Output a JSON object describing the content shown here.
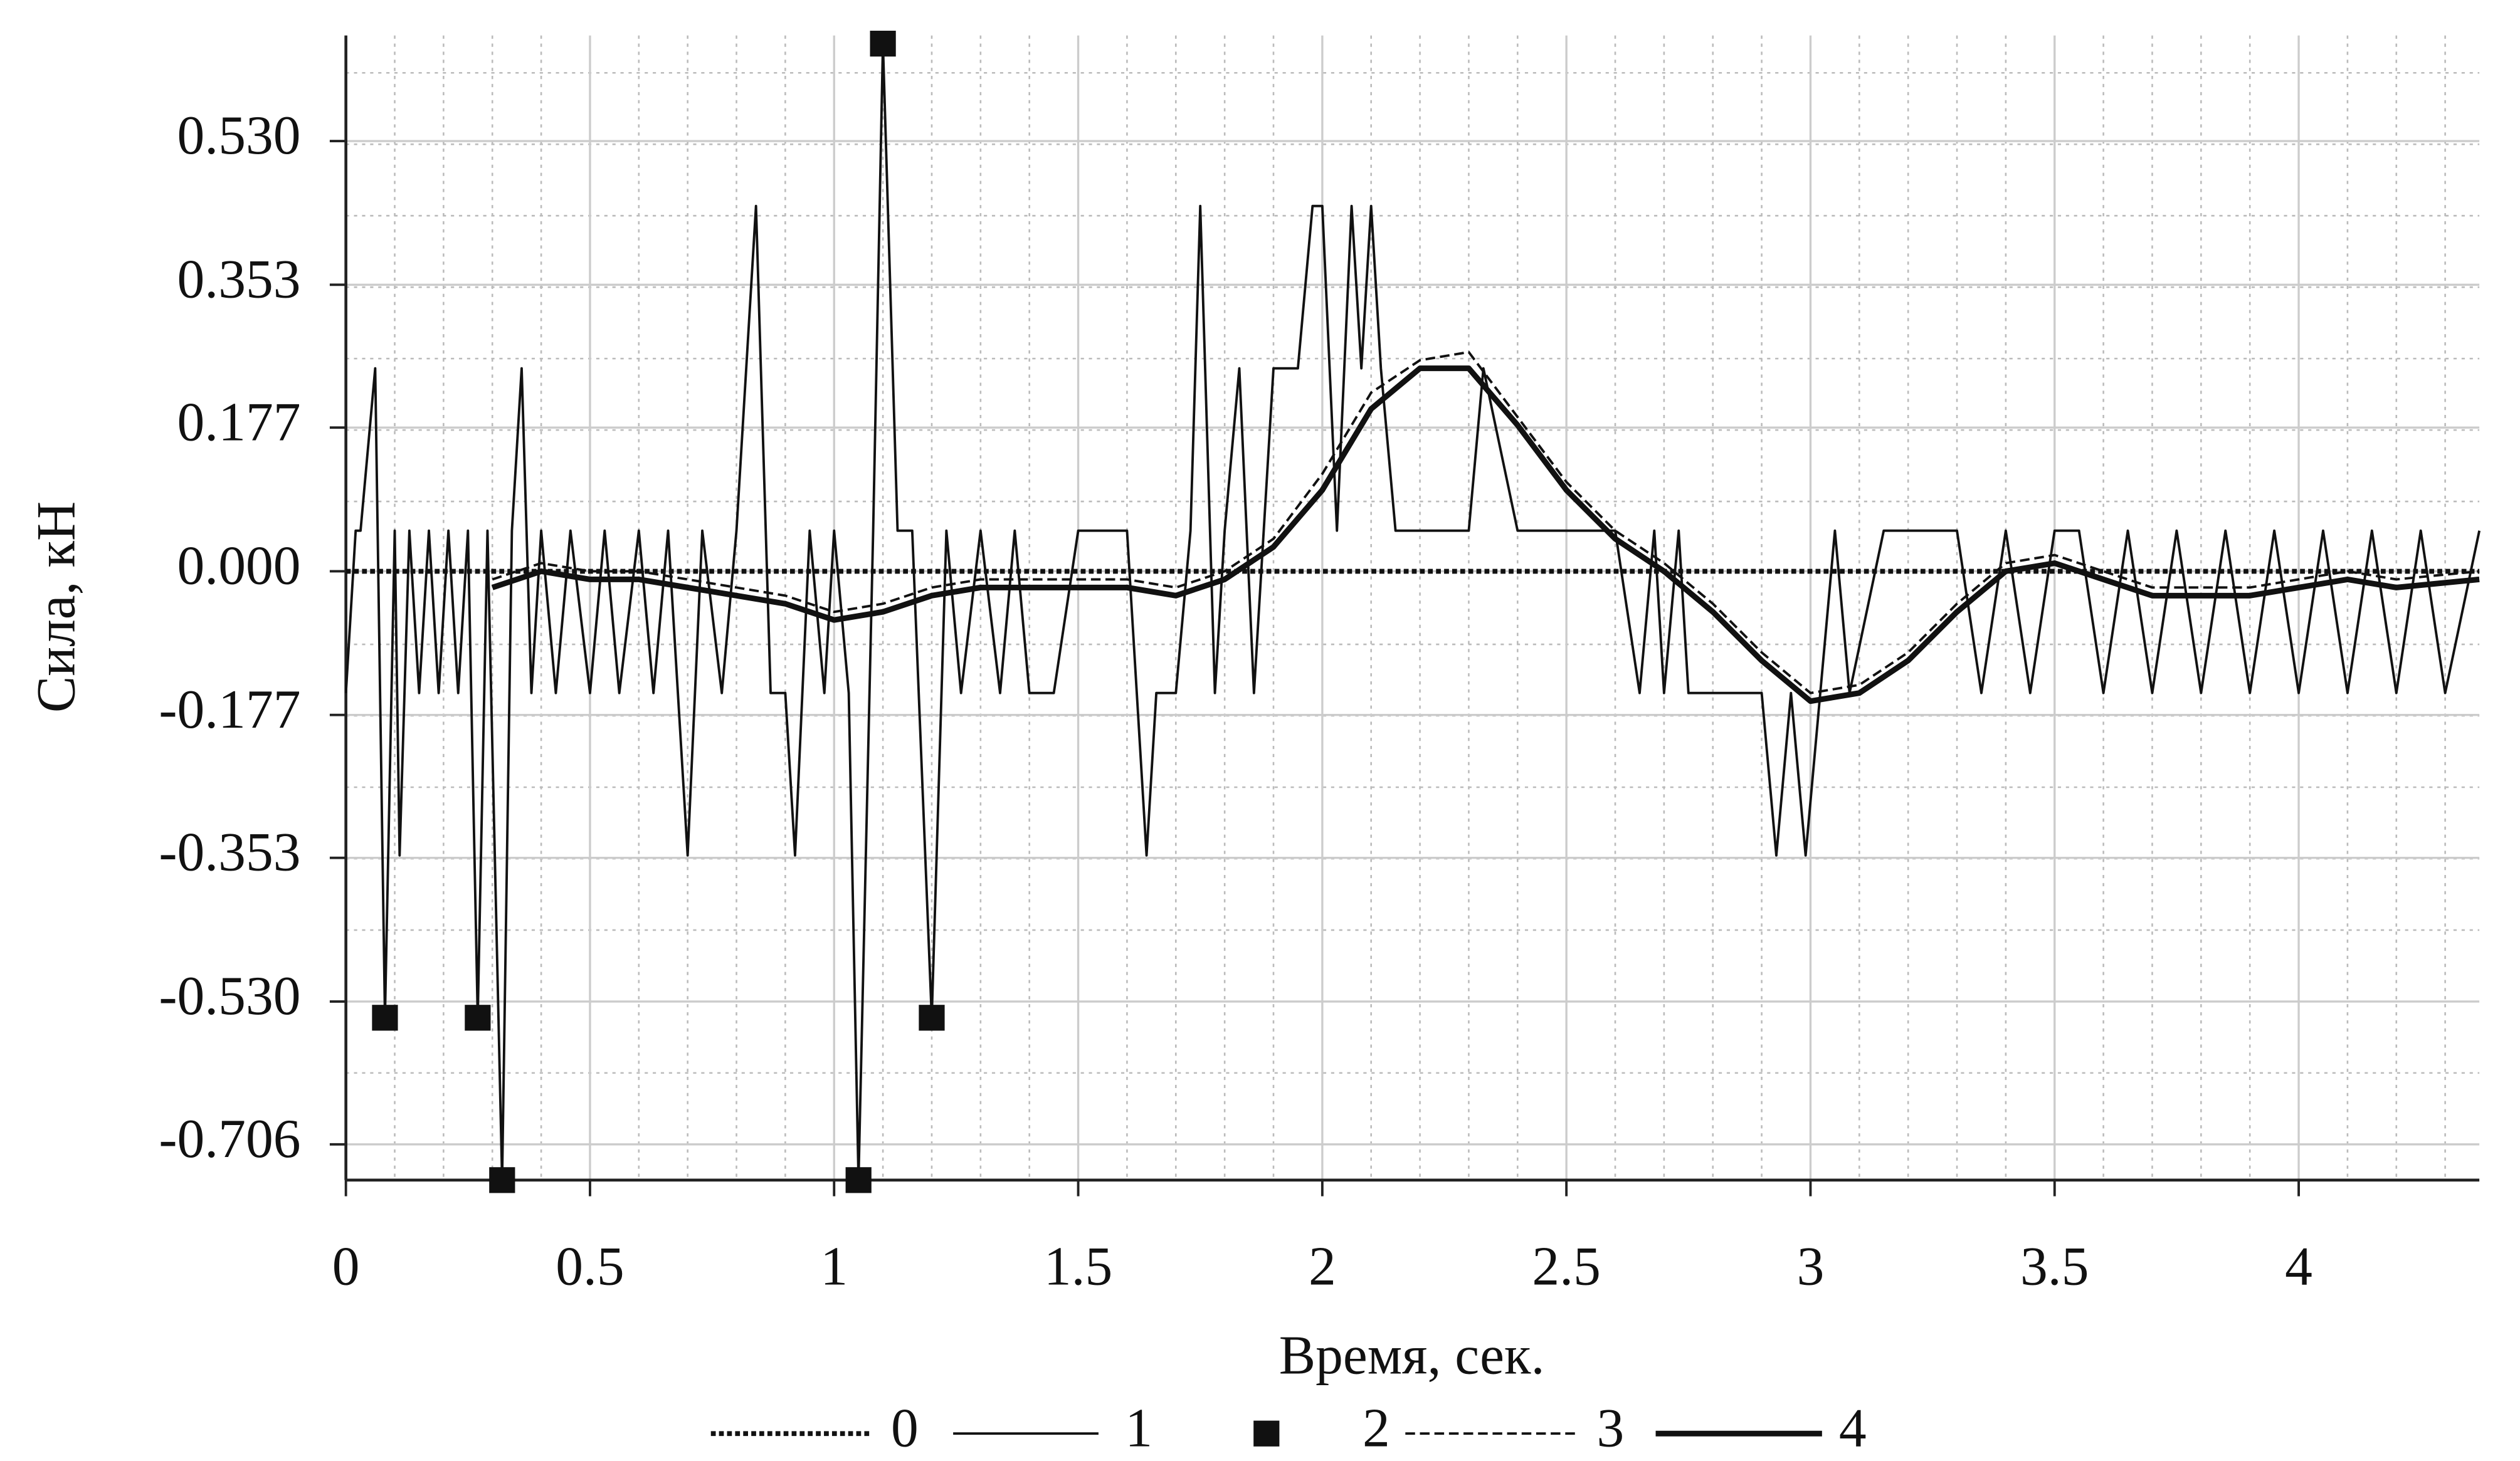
{
  "chart_data": {
    "type": "line",
    "x_label": "Время, сек.",
    "y_label": "Сила, кН",
    "xlim": [
      0,
      4.37
    ],
    "ylim": [
      -0.75,
      0.66
    ],
    "xticks": [
      0,
      0.5,
      1,
      1.5,
      2,
      2.5,
      3,
      3.5,
      4
    ],
    "yticks": [
      {
        "value": 0.53,
        "label": "0.530"
      },
      0.353,
      0.177,
      {
        "value": 0,
        "label": "0.000"
      },
      -0.177,
      -0.353,
      {
        "value": -0.53,
        "label": "-0.530"
      },
      -0.706
    ],
    "grid": true,
    "minor_grid": true,
    "legend": "bottom",
    "series": [
      {
        "name": "0",
        "color": "#111111",
        "style": "dotted",
        "x": [
          0,
          4.37
        ],
        "values": [
          0,
          0
        ]
      },
      {
        "name": "1",
        "color": "#111111",
        "style": "thin",
        "x": [
          0,
          0.02,
          0.03,
          0.06,
          0.08,
          0.1,
          0.11,
          0.13,
          0.15,
          0.17,
          0.19,
          0.21,
          0.23,
          0.25,
          0.27,
          0.29,
          0.32,
          0.34,
          0.36,
          0.38,
          0.4,
          0.43,
          0.46,
          0.5,
          0.53,
          0.56,
          0.6,
          0.63,
          0.66,
          0.7,
          0.73,
          0.77,
          0.8,
          0.84,
          0.87,
          0.9,
          0.92,
          0.95,
          0.98,
          1.0,
          1.03,
          1.05,
          1.08,
          1.1,
          1.13,
          1.16,
          1.2,
          1.23,
          1.26,
          1.3,
          1.34,
          1.37,
          1.4,
          1.45,
          1.5,
          1.55,
          1.6,
          1.62,
          1.64,
          1.66,
          1.7,
          1.73,
          1.75,
          1.78,
          1.8,
          1.83,
          1.86,
          1.9,
          1.95,
          1.98,
          2.0,
          2.03,
          2.06,
          2.08,
          2.1,
          2.12,
          2.15,
          2.2,
          2.25,
          2.3,
          2.33,
          2.4,
          2.5,
          2.6,
          2.65,
          2.68,
          2.7,
          2.73,
          2.75,
          2.8,
          2.85,
          2.9,
          2.93,
          2.96,
          2.99,
          3.02,
          3.05,
          3.08,
          3.15,
          3.2,
          3.25,
          3.3,
          3.35,
          3.4,
          3.45,
          3.5,
          3.55,
          3.6,
          3.65,
          3.7,
          3.75,
          3.8,
          3.85,
          3.9,
          3.95,
          4.0,
          4.05,
          4.1,
          4.15,
          4.2,
          4.25,
          4.3,
          4.37
        ],
        "values": [
          -0.15,
          0.05,
          0.05,
          0.25,
          -0.55,
          0.05,
          -0.35,
          0.05,
          -0.15,
          0.05,
          -0.15,
          0.05,
          -0.15,
          0.05,
          -0.55,
          0.05,
          -0.75,
          0.05,
          0.25,
          -0.15,
          0.05,
          -0.15,
          0.05,
          -0.15,
          0.05,
          -0.15,
          0.05,
          -0.15,
          0.05,
          -0.35,
          0.05,
          -0.15,
          0.05,
          0.45,
          -0.15,
          -0.15,
          -0.35,
          0.05,
          -0.15,
          0.05,
          -0.15,
          -0.75,
          0.05,
          0.65,
          0.05,
          0.05,
          -0.55,
          0.05,
          -0.15,
          0.05,
          -0.15,
          0.05,
          -0.15,
          -0.15,
          0.05,
          0.05,
          0.05,
          -0.15,
          -0.35,
          -0.15,
          -0.15,
          0.05,
          0.45,
          -0.15,
          0.05,
          0.25,
          -0.15,
          0.25,
          0.25,
          0.45,
          0.45,
          0.05,
          0.45,
          0.25,
          0.45,
          0.25,
          0.05,
          0.05,
          0.05,
          0.05,
          0.25,
          0.05,
          0.05,
          0.05,
          -0.15,
          0.05,
          -0.15,
          0.05,
          -0.15,
          -0.15,
          -0.15,
          -0.15,
          -0.35,
          -0.15,
          -0.35,
          -0.15,
          0.05,
          -0.15,
          0.05,
          0.05,
          0.05,
          0.05,
          -0.15,
          0.05,
          -0.15,
          0.05,
          0.05,
          -0.15,
          0.05,
          -0.15,
          0.05,
          -0.15,
          0.05,
          -0.15,
          0.05,
          -0.15,
          0.05,
          -0.15,
          0.05,
          -0.15,
          0.05,
          -0.15,
          0.05
        ]
      },
      {
        "name": "2",
        "color": "#111111",
        "style": "marker",
        "x": [
          0.08,
          0.27,
          0.32,
          1.05,
          1.1,
          1.2
        ],
        "values": [
          -0.55,
          -0.55,
          -0.75,
          -0.75,
          0.65,
          -0.55
        ]
      },
      {
        "name": "3",
        "color": "#111111",
        "style": "dashed",
        "x": [
          0.3,
          0.4,
          0.5,
          0.6,
          0.7,
          0.8,
          0.9,
          1.0,
          1.1,
          1.2,
          1.3,
          1.4,
          1.5,
          1.6,
          1.7,
          1.8,
          1.9,
          2.0,
          2.1,
          2.2,
          2.3,
          2.4,
          2.5,
          2.6,
          2.7,
          2.8,
          2.9,
          3.0,
          3.1,
          3.2,
          3.3,
          3.4,
          3.5,
          3.6,
          3.7,
          3.8,
          3.9,
          4.0,
          4.1,
          4.2,
          4.37
        ],
        "values": [
          -0.01,
          0.01,
          0.0,
          0.0,
          -0.01,
          -0.02,
          -0.03,
          -0.05,
          -0.04,
          -0.02,
          -0.01,
          -0.01,
          -0.01,
          -0.01,
          -0.02,
          0.0,
          0.04,
          0.12,
          0.22,
          0.26,
          0.27,
          0.19,
          0.11,
          0.05,
          0.01,
          -0.04,
          -0.1,
          -0.15,
          -0.14,
          -0.1,
          -0.04,
          0.01,
          0.02,
          0.0,
          -0.02,
          -0.02,
          -0.02,
          -0.01,
          0.0,
          -0.01,
          0.0
        ]
      },
      {
        "name": "4",
        "color": "#111111",
        "style": "thick",
        "x": [
          0.3,
          0.4,
          0.5,
          0.6,
          0.7,
          0.8,
          0.9,
          1.0,
          1.1,
          1.2,
          1.3,
          1.4,
          1.5,
          1.6,
          1.7,
          1.8,
          1.9,
          2.0,
          2.1,
          2.2,
          2.3,
          2.4,
          2.5,
          2.6,
          2.7,
          2.8,
          2.9,
          3.0,
          3.1,
          3.2,
          3.3,
          3.4,
          3.5,
          3.6,
          3.7,
          3.8,
          3.9,
          4.0,
          4.1,
          4.2,
          4.37
        ],
        "values": [
          -0.02,
          0.0,
          -0.01,
          -0.01,
          -0.02,
          -0.03,
          -0.04,
          -0.06,
          -0.05,
          -0.03,
          -0.02,
          -0.02,
          -0.02,
          -0.02,
          -0.03,
          -0.01,
          0.03,
          0.1,
          0.2,
          0.25,
          0.25,
          0.18,
          0.1,
          0.04,
          0.0,
          -0.05,
          -0.11,
          -0.16,
          -0.15,
          -0.11,
          -0.05,
          0.0,
          0.01,
          -0.01,
          -0.03,
          -0.03,
          -0.03,
          -0.02,
          -0.01,
          -0.02,
          -0.01
        ]
      }
    ]
  }
}
